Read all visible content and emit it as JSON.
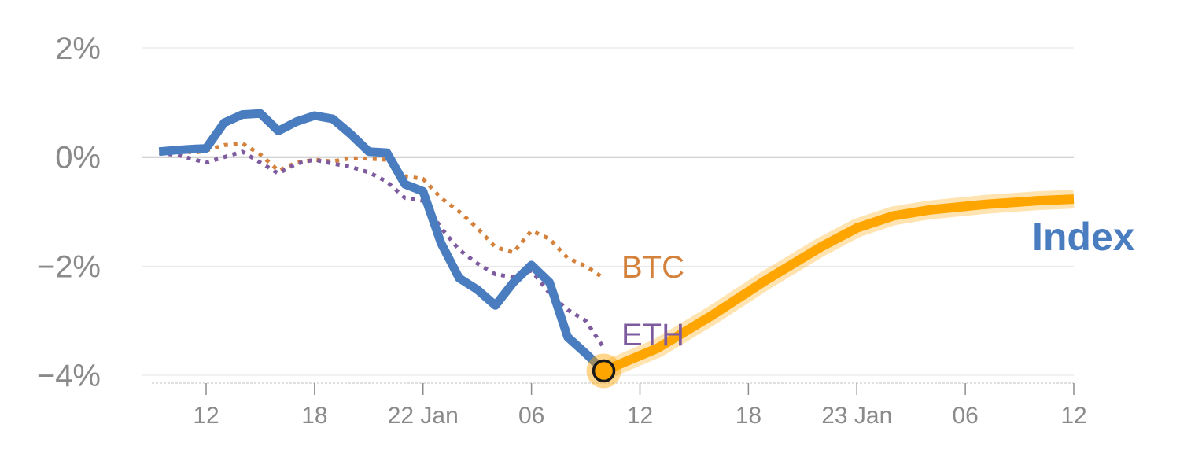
{
  "chart_data": {
    "type": "line",
    "title": "",
    "xlabel": "",
    "ylabel": "",
    "ylim": [
      -4,
      2
    ],
    "x_tick_labels": [
      "12",
      "18",
      "22 Jan",
      "06",
      "12",
      "18",
      "23 Jan",
      "06",
      "12"
    ],
    "x_tick_hours": [
      12,
      18,
      24,
      30,
      36,
      42,
      48,
      54,
      60
    ],
    "xlim_hours": [
      9,
      60
    ],
    "y_tick_labels": [
      "2%",
      "0%",
      "−2%",
      "−4%"
    ],
    "y_tick_values": [
      2,
      0,
      -2,
      -4
    ],
    "grid": true,
    "x_unit_note": "hours from 21 Jan 00:00",
    "series": [
      {
        "name": "Index",
        "label_text": "Index",
        "color": "#4a7dbf",
        "style": "solid",
        "points": [
          [
            9.4,
            0.1
          ],
          [
            10.4,
            0.13
          ],
          [
            11.4,
            0.15
          ],
          [
            12,
            0.16
          ],
          [
            13,
            0.63
          ],
          [
            14,
            0.78
          ],
          [
            15,
            0.8
          ],
          [
            16,
            0.48
          ],
          [
            17,
            0.65
          ],
          [
            18,
            0.76
          ],
          [
            19,
            0.7
          ],
          [
            20,
            0.42
          ],
          [
            21,
            0.1
          ],
          [
            22,
            0.08
          ],
          [
            23,
            -0.5
          ],
          [
            24,
            -0.63
          ],
          [
            25,
            -1.58
          ],
          [
            26,
            -2.22
          ],
          [
            27,
            -2.43
          ],
          [
            28,
            -2.72
          ],
          [
            29,
            -2.3
          ],
          [
            30,
            -1.98
          ],
          [
            31,
            -2.3
          ],
          [
            32,
            -3.3
          ],
          [
            33,
            -3.6
          ],
          [
            34,
            -3.92
          ]
        ]
      },
      {
        "name": "BTC",
        "label_text": "BTC",
        "color": "#d4813c",
        "style": "dotted",
        "points": [
          [
            9.4,
            0.1
          ],
          [
            10.4,
            0.12
          ],
          [
            11.4,
            0.08
          ],
          [
            12,
            0.12
          ],
          [
            13,
            0.22
          ],
          [
            14,
            0.25
          ],
          [
            15,
            0.05
          ],
          [
            16,
            -0.25
          ],
          [
            17,
            -0.1
          ],
          [
            18,
            -0.05
          ],
          [
            19,
            -0.08
          ],
          [
            20,
            -0.02
          ],
          [
            21,
            -0.03
          ],
          [
            22,
            -0.05
          ],
          [
            23,
            -0.35
          ],
          [
            24,
            -0.4
          ],
          [
            25,
            -0.75
          ],
          [
            26,
            -1.0
          ],
          [
            27,
            -1.3
          ],
          [
            28,
            -1.65
          ],
          [
            29,
            -1.75
          ],
          [
            30,
            -1.35
          ],
          [
            31,
            -1.5
          ],
          [
            32,
            -1.85
          ],
          [
            33,
            -2.0
          ],
          [
            34,
            -2.22
          ]
        ]
      },
      {
        "name": "ETH",
        "label_text": "ETH",
        "color": "#7d5b9e",
        "style": "dotted",
        "points": [
          [
            9.4,
            0.07
          ],
          [
            10.4,
            0.04
          ],
          [
            11.4,
            -0.05
          ],
          [
            12,
            -0.1
          ],
          [
            13,
            0.0
          ],
          [
            14,
            0.1
          ],
          [
            15,
            -0.1
          ],
          [
            16,
            -0.3
          ],
          [
            17,
            -0.12
          ],
          [
            18,
            -0.05
          ],
          [
            19,
            -0.12
          ],
          [
            20,
            -0.18
          ],
          [
            21,
            -0.28
          ],
          [
            22,
            -0.45
          ],
          [
            23,
            -0.75
          ],
          [
            24,
            -0.8
          ],
          [
            25,
            -1.3
          ],
          [
            26,
            -1.7
          ],
          [
            27,
            -1.95
          ],
          [
            28,
            -2.15
          ],
          [
            29,
            -2.2
          ],
          [
            30,
            -2.08
          ],
          [
            31,
            -2.5
          ],
          [
            32,
            -2.8
          ],
          [
            33,
            -3.0
          ],
          [
            34,
            -3.5
          ]
        ]
      },
      {
        "name": "Index (projection)",
        "color": "#ffa500",
        "style": "projection",
        "points": [
          [
            34,
            -3.92
          ],
          [
            37,
            -3.5
          ],
          [
            40,
            -2.9
          ],
          [
            43,
            -2.25
          ],
          [
            46,
            -1.65
          ],
          [
            48,
            -1.3
          ],
          [
            50,
            -1.08
          ],
          [
            52,
            -0.97
          ],
          [
            55,
            -0.87
          ],
          [
            58,
            -0.8
          ],
          [
            60,
            -0.77
          ]
        ]
      }
    ],
    "marker": {
      "x": 34,
      "y": -3.92,
      "fill": "#ffa500",
      "stroke": "#1a1a1a"
    }
  }
}
